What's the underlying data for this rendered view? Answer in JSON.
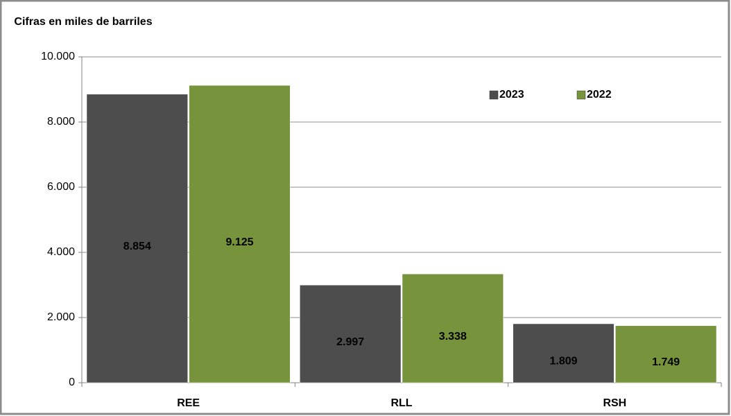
{
  "chart_data": {
    "type": "bar",
    "y_axis_label": "Cifras en miles de barriles",
    "categories": [
      "REE",
      "RLL",
      "RSH"
    ],
    "series": [
      {
        "name": "2023",
        "color": "#4d4d4d",
        "values": [
          8854,
          2997,
          1809
        ],
        "value_labels": [
          "8.854",
          "2.997",
          "1.809"
        ]
      },
      {
        "name": "2022",
        "color": "#77933c",
        "values": [
          9125,
          3338,
          1749
        ],
        "value_labels": [
          "9.125",
          "3.338",
          "1.749"
        ]
      }
    ],
    "ylim": [
      0,
      10000
    ],
    "yticks": [
      0,
      {
        "value": 2000,
        "label": "2.000"
      },
      {
        "value": 4000,
        "label": "4.000"
      },
      {
        "value": 6000,
        "label": "6.000"
      },
      {
        "value": 8000,
        "label": "8.000"
      },
      {
        "value": 10000,
        "label": "10.000"
      }
    ],
    "grid": true,
    "legend": "top-right"
  }
}
